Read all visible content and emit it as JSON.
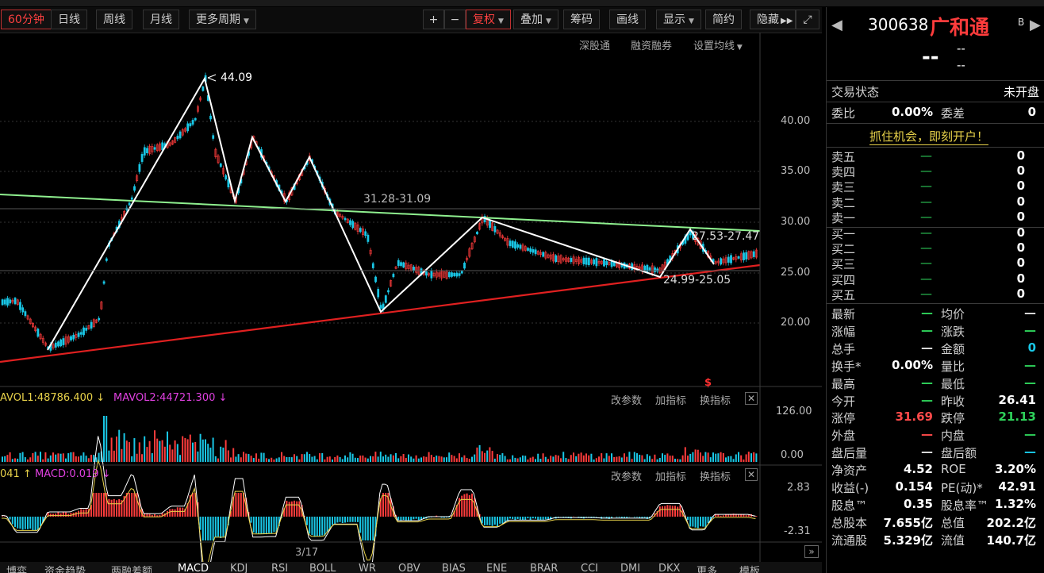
{
  "toolbar": {
    "periods": [
      "60分钟",
      "日线",
      "周线",
      "月线",
      "更多周期"
    ],
    "tools": [
      "+",
      "−",
      "复权",
      "叠加",
      "筹码",
      "画线",
      "显示",
      "简约",
      "隐藏"
    ]
  },
  "chart_links": [
    "深股通",
    "融资融券",
    "设置均线"
  ],
  "price_axis": [
    "40.00",
    "35.00",
    "30.00",
    "25.00",
    "20.00"
  ],
  "annotations": {
    "high": "44.09",
    "range1": "31.28-31.09",
    "range2": "27.53-27.47",
    "range3": "24.99-25.05"
  },
  "volume_panel": {
    "legend1": "AVOL1:48786.400",
    "legend2": "MAVOL2:44721.300",
    "links": [
      "改参数",
      "加指标",
      "换指标"
    ],
    "axis": [
      "126.00",
      "0.00"
    ]
  },
  "macd_panel": {
    "legend1": "041",
    "legend2": "MACD:0.019",
    "links": [
      "改参数",
      "加指标",
      "换指标"
    ],
    "axis": [
      "2.83",
      "-2.31"
    ]
  },
  "x_axis_label": "3/17",
  "bottom_tabs": [
    "博弈",
    "资金趋势",
    "两融差额",
    "MACD",
    "KDJ",
    "RSI",
    "BOLL",
    "WR",
    "OBV",
    "BIAS",
    "ENE",
    "BRAR",
    "CCI",
    "DMI",
    "DKX",
    "更多",
    "模板"
  ],
  "quote": {
    "code": "300638",
    "name": "广和通",
    "badge": "B",
    "price": "--",
    "change": "--",
    "pct": "--",
    "status_label": "交易状态",
    "status_value": "未开盘",
    "weibi_label": "委比",
    "weibi_value": "0.00%",
    "weicha_label": "委差",
    "weicha_value": "0",
    "promo": "抓住机会，即刻开户！",
    "asks": [
      {
        "label": "卖五",
        "price": "—",
        "vol": "0"
      },
      {
        "label": "卖四",
        "price": "—",
        "vol": "0"
      },
      {
        "label": "卖三",
        "price": "—",
        "vol": "0"
      },
      {
        "label": "卖二",
        "price": "—",
        "vol": "0"
      },
      {
        "label": "卖一",
        "price": "—",
        "vol": "0"
      }
    ],
    "bids": [
      {
        "label": "买一",
        "price": "—",
        "vol": "0"
      },
      {
        "label": "买二",
        "price": "—",
        "vol": "0"
      },
      {
        "label": "买三",
        "price": "—",
        "vol": "0"
      },
      {
        "label": "买四",
        "price": "—",
        "vol": "0"
      },
      {
        "label": "买五",
        "price": "—",
        "vol": "0"
      }
    ],
    "stats": [
      {
        "l1": "最新",
        "v1": "—",
        "c1": "#2ed15a",
        "l2": "均价",
        "v2": "—",
        "c2": "#ddd"
      },
      {
        "l1": "涨幅",
        "v1": "—",
        "c1": "#2ed15a",
        "l2": "涨跌",
        "v2": "—",
        "c2": "#2ed15a"
      },
      {
        "l1": "总手",
        "v1": "—",
        "c1": "#ddd",
        "l2": "金额",
        "v2": "0",
        "c2": "#19c7e6"
      },
      {
        "l1": "换手*",
        "v1": "0.00%",
        "c1": "#fff",
        "l2": "量比",
        "v2": "—",
        "c2": "#2ed15a"
      },
      {
        "l1": "最高",
        "v1": "—",
        "c1": "#2ed15a",
        "l2": "最低",
        "v2": "—",
        "c2": "#2ed15a"
      },
      {
        "l1": "今开",
        "v1": "—",
        "c1": "#2ed15a",
        "l2": "昨收",
        "v2": "26.41",
        "c2": "#fff"
      },
      {
        "l1": "涨停",
        "v1": "31.69",
        "c1": "#ff4a4a",
        "l2": "跌停",
        "v2": "21.13",
        "c2": "#2ed15a"
      },
      {
        "l1": "外盘",
        "v1": "—",
        "c1": "#ff4a4a",
        "l2": "内盘",
        "v2": "—",
        "c2": "#2ed15a"
      },
      {
        "l1": "盘后量",
        "v1": "—",
        "c1": "#ddd",
        "l2": "盘后额",
        "v2": "—",
        "c2": "#19c7e6"
      },
      {
        "l1": "净资产",
        "v1": "4.52",
        "c1": "#fff",
        "l2": "ROE",
        "v2": "3.20%",
        "c2": "#fff"
      },
      {
        "l1": "收益(-)",
        "v1": "0.154",
        "c1": "#fff",
        "l2": "PE(动)*",
        "v2": "42.91",
        "c2": "#fff"
      },
      {
        "l1": "股息™",
        "v1": "0.35",
        "c1": "#fff",
        "l2": "股息率™",
        "v2": "1.32%",
        "c2": "#fff"
      },
      {
        "l1": "总股本",
        "v1": "7.655亿",
        "c1": "#fff",
        "l2": "总值",
        "v2": "202.2亿",
        "c2": "#fff"
      },
      {
        "l1": "流通股",
        "v1": "5.329亿",
        "c1": "#fff",
        "l2": "流值",
        "v2": "140.7亿",
        "c2": "#fff"
      }
    ]
  },
  "colors": {
    "up": "#ff3c3c",
    "down": "#19c7e6",
    "support": "#e02020",
    "resistance": "#8ff08f",
    "pattern": "#ffffff"
  }
}
